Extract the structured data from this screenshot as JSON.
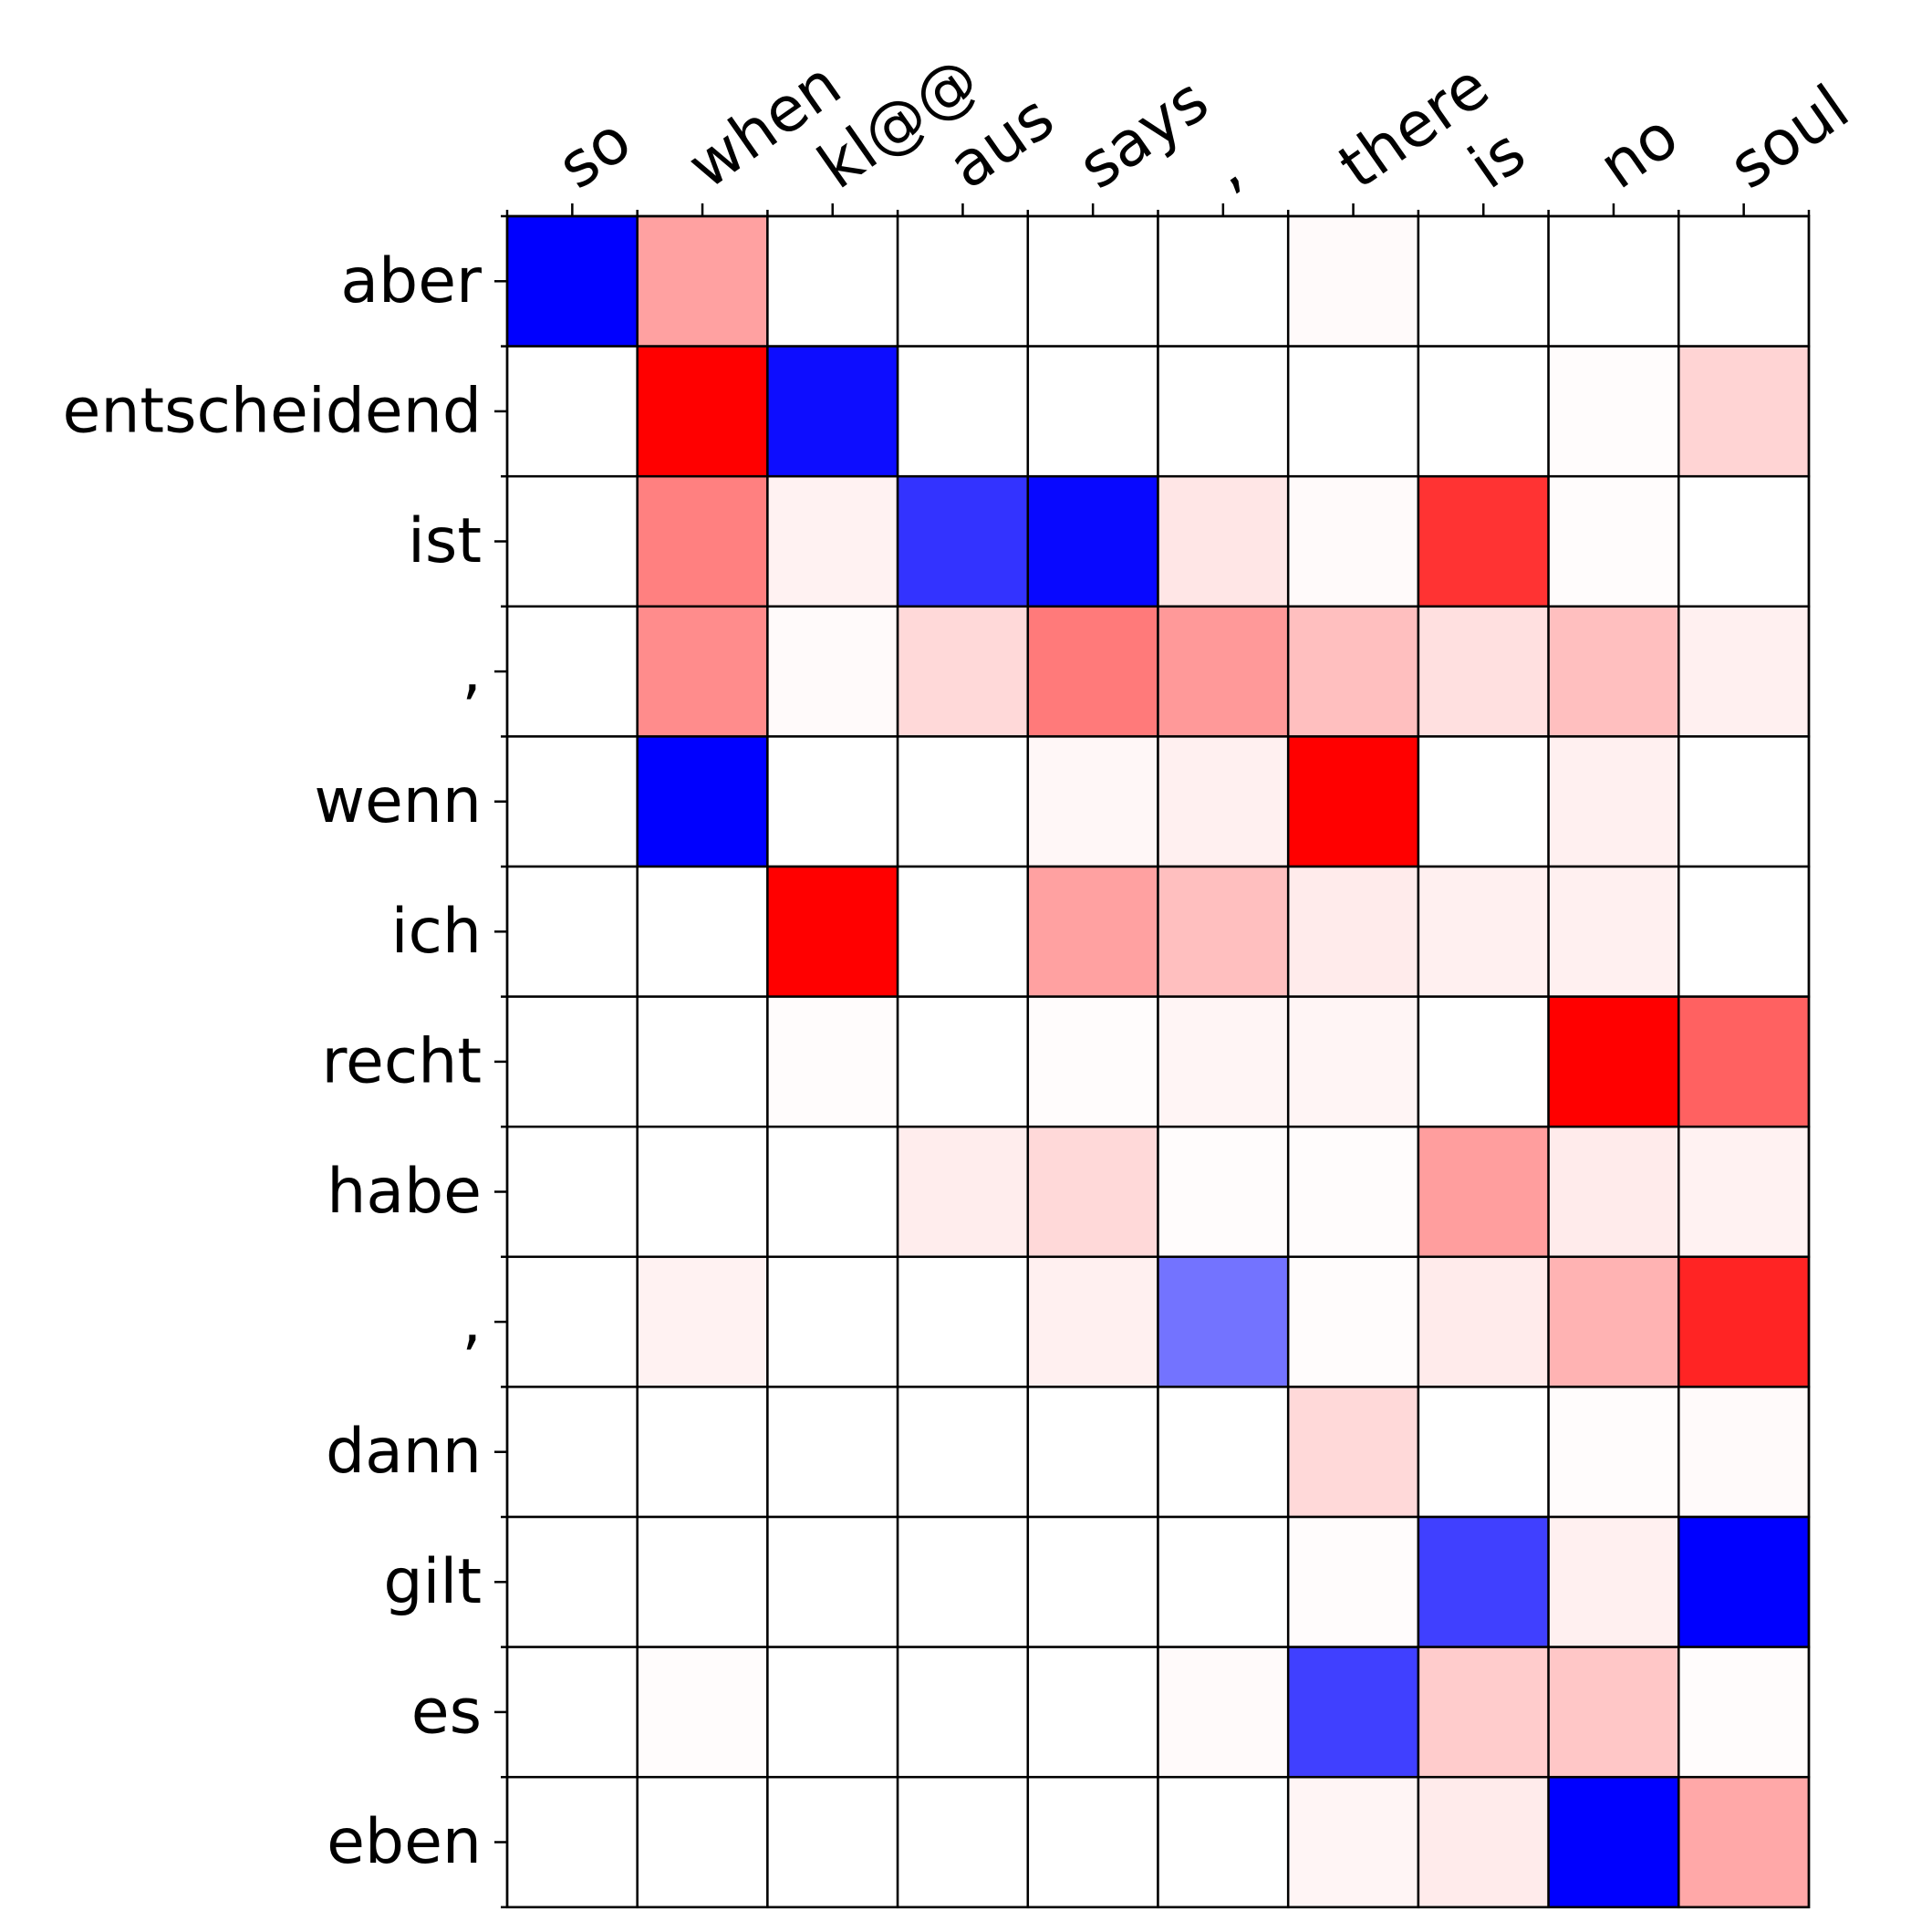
{
  "chart_data": {
    "type": "heatmap",
    "title": "",
    "xlabel": "",
    "ylabel": "",
    "x_position": "top",
    "colorscale": "blue-white-red",
    "value_range": [
      -1,
      1
    ],
    "grid": true,
    "legend": "none",
    "x_labels": [
      "so",
      "when",
      "kl@@",
      "aus",
      "says",
      ",",
      "there",
      "is",
      "no",
      "soul"
    ],
    "y_labels": [
      "aber",
      "entscheidend",
      "ist",
      ",",
      "wenn",
      "ich",
      "recht",
      "habe",
      ",",
      "dann",
      "gilt",
      "es",
      "eben"
    ],
    "values": [
      [
        -1.0,
        0.37,
        0.0,
        0.0,
        0.0,
        0.0,
        0.02,
        0.0,
        0.0,
        0.0
      ],
      [
        0.0,
        1.0,
        -0.95,
        0.0,
        0.0,
        0.0,
        0.0,
        0.0,
        0.01,
        0.17
      ],
      [
        0.0,
        0.5,
        0.05,
        -0.8,
        -0.97,
        0.1,
        0.02,
        0.8,
        0.01,
        0.0
      ],
      [
        0.0,
        0.45,
        0.02,
        0.15,
        0.52,
        0.4,
        0.25,
        0.12,
        0.25,
        0.06
      ],
      [
        0.0,
        -1.0,
        0.0,
        0.0,
        0.03,
        0.06,
        1.0,
        0.0,
        0.06,
        0.0
      ],
      [
        0.0,
        0.0,
        1.0,
        0.0,
        0.37,
        0.25,
        0.08,
        0.06,
        0.06,
        0.0
      ],
      [
        0.0,
        0.0,
        0.01,
        0.0,
        0.01,
        0.04,
        0.04,
        0.0,
        1.0,
        0.62
      ],
      [
        0.0,
        0.0,
        0.0,
        0.07,
        0.15,
        0.01,
        0.01,
        0.38,
        0.08,
        0.05
      ],
      [
        0.0,
        0.05,
        0.0,
        0.0,
        0.06,
        -0.55,
        0.01,
        0.08,
        0.3,
        0.86
      ],
      [
        0.0,
        0.0,
        0.0,
        0.0,
        0.0,
        0.0,
        0.15,
        0.0,
        0.01,
        0.02
      ],
      [
        0.0,
        0.0,
        0.0,
        0.0,
        0.0,
        0.0,
        0.01,
        -0.75,
        0.06,
        -1.0
      ],
      [
        0.0,
        0.01,
        0.0,
        0.0,
        0.0,
        0.02,
        -0.75,
        0.2,
        0.22,
        0.01
      ],
      [
        0.0,
        0.0,
        0.0,
        0.0,
        0.0,
        0.0,
        0.04,
        0.08,
        -1.0,
        0.34
      ]
    ]
  }
}
